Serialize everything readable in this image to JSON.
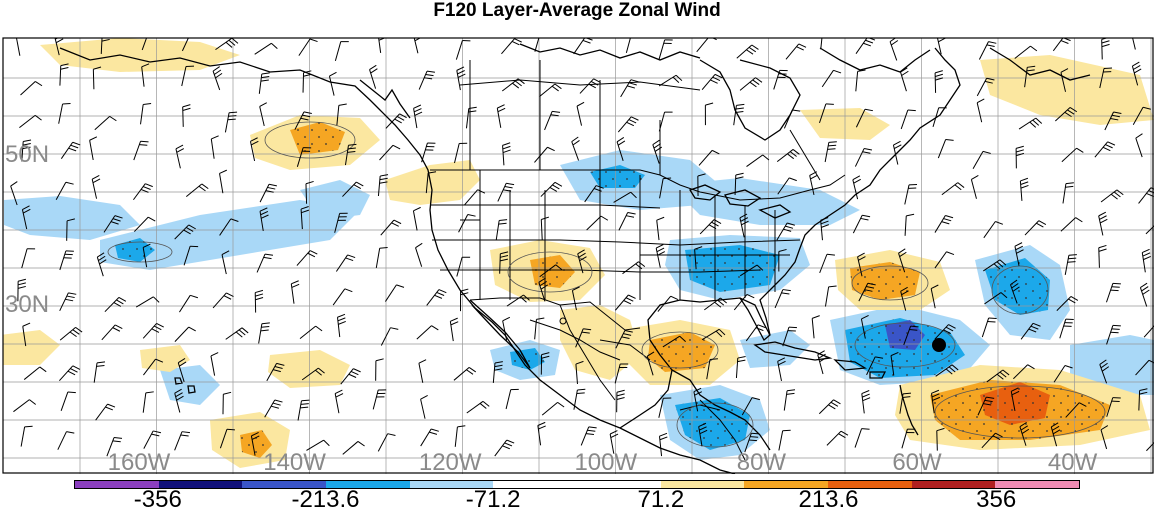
{
  "title": "F120 Layer-Average Zonal Wind",
  "lat_labels": [
    {
      "text": "50N",
      "lat": 50
    },
    {
      "text": "30N",
      "lat": 30
    }
  ],
  "lon_labels": [
    {
      "text": "160W",
      "lon": -160
    },
    {
      "text": "140W",
      "lon": -140
    },
    {
      "text": "120W",
      "lon": -120
    },
    {
      "text": "100W",
      "lon": -100
    },
    {
      "text": "80W",
      "lon": -80
    },
    {
      "text": "60W",
      "lon": -60
    },
    {
      "text": "40W",
      "lon": -40
    }
  ],
  "colorbar": {
    "colors": [
      "#8b3fbf",
      "#10107a",
      "#3a55c8",
      "#1ca8ea",
      "#a9d8f7",
      "#ffffff",
      "#ffffff",
      "#fbe7a0",
      "#f5a623",
      "#e8600f",
      "#b02020",
      "#f08cb4"
    ],
    "labels": [
      {
        "text": "-356",
        "boundary": 1
      },
      {
        "text": "-213.6",
        "boundary": 3
      },
      {
        "text": "-71.2",
        "boundary": 5
      },
      {
        "text": "71.2",
        "boundary": 7
      },
      {
        "text": "213.6",
        "boundary": 9
      },
      {
        "text": "356",
        "boundary": 11
      }
    ]
  },
  "fill_colors": {
    "light_blue": "#a9d8f7",
    "blue": "#1ca8ea",
    "dark_blue": "#3a55c8",
    "light_yellow": "#fbe7a0",
    "orange": "#f5a623",
    "dark_orange": "#e8600f"
  },
  "wind_regions": [
    {
      "name": "pacific-low-1",
      "type": "light_blue",
      "points": [
        [
          4,
          200
        ],
        [
          60,
          196
        ],
        [
          120,
          205
        ],
        [
          140,
          225
        ],
        [
          90,
          240
        ],
        [
          30,
          235
        ],
        [
          4,
          225
        ]
      ]
    },
    {
      "name": "pacific-low-2",
      "type": "light_blue",
      "points": [
        [
          100,
          240
        ],
        [
          200,
          215
        ],
        [
          300,
          200
        ],
        [
          360,
          210
        ],
        [
          330,
          240
        ],
        [
          240,
          255
        ],
        [
          150,
          270
        ],
        [
          100,
          262
        ]
      ]
    },
    {
      "name": "pacific-low-3",
      "type": "light_blue",
      "points": [
        [
          300,
          190
        ],
        [
          340,
          180
        ],
        [
          370,
          195
        ],
        [
          360,
          215
        ],
        [
          320,
          220
        ]
      ]
    },
    {
      "name": "canada-low",
      "type": "light_blue",
      "points": [
        [
          560,
          165
        ],
        [
          620,
          150
        ],
        [
          690,
          160
        ],
        [
          720,
          185
        ],
        [
          700,
          205
        ],
        [
          640,
          210
        ],
        [
          580,
          200
        ]
      ]
    },
    {
      "name": "great-lakes-low",
      "type": "light_blue",
      "points": [
        [
          670,
          185
        ],
        [
          740,
          178
        ],
        [
          820,
          190
        ],
        [
          860,
          210
        ],
        [
          830,
          225
        ],
        [
          760,
          225
        ],
        [
          700,
          215
        ]
      ]
    },
    {
      "name": "east-us-low",
      "type": "light_blue",
      "points": [
        [
          670,
          240
        ],
        [
          730,
          235
        ],
        [
          800,
          238
        ],
        [
          810,
          265
        ],
        [
          780,
          290
        ],
        [
          720,
          300
        ],
        [
          680,
          290
        ],
        [
          665,
          265
        ]
      ]
    },
    {
      "name": "mexico-low",
      "type": "light_blue",
      "points": [
        [
          490,
          350
        ],
        [
          530,
          340
        ],
        [
          560,
          350
        ],
        [
          555,
          375
        ],
        [
          520,
          380
        ],
        [
          495,
          370
        ]
      ]
    },
    {
      "name": "caribbean-low",
      "type": "light_blue",
      "points": [
        [
          740,
          340
        ],
        [
          790,
          330
        ],
        [
          810,
          345
        ],
        [
          790,
          365
        ],
        [
          750,
          368
        ]
      ]
    },
    {
      "name": "atlantic-low-1",
      "type": "light_blue",
      "points": [
        [
          830,
          320
        ],
        [
          900,
          305
        ],
        [
          960,
          320
        ],
        [
          990,
          345
        ],
        [
          960,
          380
        ],
        [
          880,
          385
        ],
        [
          840,
          370
        ]
      ]
    },
    {
      "name": "atlantic-low-2",
      "type": "light_blue",
      "points": [
        [
          975,
          260
        ],
        [
          1030,
          245
        ],
        [
          1060,
          265
        ],
        [
          1070,
          310
        ],
        [
          1050,
          340
        ],
        [
          1010,
          335
        ],
        [
          985,
          305
        ]
      ]
    },
    {
      "name": "atlantic-low-3",
      "type": "light_blue",
      "points": [
        [
          1070,
          345
        ],
        [
          1130,
          335
        ],
        [
          1154,
          340
        ],
        [
          1154,
          395
        ],
        [
          1100,
          395
        ],
        [
          1070,
          380
        ]
      ]
    },
    {
      "name": "central-america-low",
      "type": "light_blue",
      "points": [
        [
          660,
          395
        ],
        [
          720,
          385
        ],
        [
          760,
          400
        ],
        [
          770,
          430
        ],
        [
          740,
          455
        ],
        [
          700,
          460
        ],
        [
          670,
          440
        ]
      ]
    },
    {
      "name": "hawaii-low",
      "type": "light_blue",
      "points": [
        [
          160,
          370
        ],
        [
          200,
          365
        ],
        [
          220,
          385
        ],
        [
          200,
          405
        ],
        [
          170,
          400
        ]
      ]
    },
    {
      "name": "pacific-low-blue",
      "type": "blue",
      "points": [
        [
          115,
          245
        ],
        [
          140,
          238
        ],
        [
          155,
          250
        ],
        [
          140,
          262
        ],
        [
          118,
          258
        ]
      ]
    },
    {
      "name": "canada-low-blue",
      "type": "blue",
      "points": [
        [
          590,
          172
        ],
        [
          620,
          165
        ],
        [
          645,
          175
        ],
        [
          635,
          188
        ],
        [
          600,
          188
        ]
      ]
    },
    {
      "name": "east-us-low-blue",
      "type": "blue",
      "points": [
        [
          685,
          250
        ],
        [
          740,
          245
        ],
        [
          780,
          255
        ],
        [
          770,
          285
        ],
        [
          720,
          292
        ],
        [
          690,
          280
        ]
      ]
    },
    {
      "name": "atlantic-low-blue",
      "type": "blue",
      "points": [
        [
          845,
          330
        ],
        [
          900,
          318
        ],
        [
          950,
          332
        ],
        [
          965,
          355
        ],
        [
          935,
          375
        ],
        [
          880,
          378
        ],
        [
          850,
          362
        ]
      ]
    },
    {
      "name": "atlantic-low-blue-2",
      "type": "blue",
      "points": [
        [
          985,
          270
        ],
        [
          1025,
          258
        ],
        [
          1050,
          280
        ],
        [
          1048,
          310
        ],
        [
          1020,
          315
        ],
        [
          995,
          300
        ]
      ]
    },
    {
      "name": "central-america-blue",
      "type": "blue",
      "points": [
        [
          675,
          405
        ],
        [
          720,
          398
        ],
        [
          750,
          415
        ],
        [
          745,
          440
        ],
        [
          710,
          450
        ],
        [
          685,
          435
        ]
      ]
    },
    {
      "name": "mexico-blue",
      "type": "blue",
      "points": [
        [
          510,
          352
        ],
        [
          535,
          348
        ],
        [
          545,
          362
        ],
        [
          530,
          370
        ],
        [
          512,
          365
        ]
      ]
    },
    {
      "name": "atlantic-low-darkblue",
      "type": "dark_blue",
      "points": [
        [
          885,
          325
        ],
        [
          910,
          320
        ],
        [
          925,
          335
        ],
        [
          915,
          350
        ],
        [
          890,
          348
        ]
      ]
    },
    {
      "name": "alaska-high",
      "type": "light_yellow",
      "points": [
        [
          40,
          45
        ],
        [
          120,
          38
        ],
        [
          200,
          42
        ],
        [
          240,
          55
        ],
        [
          200,
          70
        ],
        [
          120,
          72
        ],
        [
          60,
          65
        ]
      ]
    },
    {
      "name": "gulf-alaska-high",
      "type": "light_yellow",
      "points": [
        [
          250,
          135
        ],
        [
          300,
          115
        ],
        [
          360,
          118
        ],
        [
          380,
          140
        ],
        [
          350,
          165
        ],
        [
          290,
          170
        ],
        [
          255,
          158
        ]
      ]
    },
    {
      "name": "pnw-high",
      "type": "light_yellow",
      "points": [
        [
          385,
          180
        ],
        [
          430,
          165
        ],
        [
          470,
          160
        ],
        [
          480,
          180
        ],
        [
          460,
          200
        ],
        [
          420,
          205
        ],
        [
          390,
          200
        ]
      ]
    },
    {
      "name": "southwest-high",
      "type": "light_yellow",
      "points": [
        [
          490,
          250
        ],
        [
          540,
          240
        ],
        [
          590,
          248
        ],
        [
          605,
          275
        ],
        [
          580,
          300
        ],
        [
          530,
          302
        ],
        [
          495,
          285
        ]
      ]
    },
    {
      "name": "mexico-high",
      "type": "light_yellow",
      "points": [
        [
          560,
          310
        ],
        [
          600,
          305
        ],
        [
          630,
          320
        ],
        [
          640,
          355
        ],
        [
          610,
          380
        ],
        [
          575,
          370
        ],
        [
          560,
          340
        ]
      ]
    },
    {
      "name": "gulf-high",
      "type": "light_yellow",
      "points": [
        [
          620,
          330
        ],
        [
          680,
          320
        ],
        [
          730,
          330
        ],
        [
          740,
          360
        ],
        [
          710,
          385
        ],
        [
          650,
          385
        ],
        [
          625,
          360
        ]
      ]
    },
    {
      "name": "atlantic-high-1",
      "type": "light_yellow",
      "points": [
        [
          835,
          260
        ],
        [
          890,
          250
        ],
        [
          940,
          262
        ],
        [
          950,
          290
        ],
        [
          920,
          310
        ],
        [
          860,
          310
        ],
        [
          838,
          290
        ]
      ]
    },
    {
      "name": "atlantic-high-2",
      "type": "light_yellow",
      "points": [
        [
          900,
          385
        ],
        [
          980,
          365
        ],
        [
          1060,
          370
        ],
        [
          1140,
          395
        ],
        [
          1150,
          430
        ],
        [
          1080,
          445
        ],
        [
          980,
          450
        ],
        [
          910,
          440
        ],
        [
          895,
          415
        ]
      ]
    },
    {
      "name": "north-atlantic-high",
      "type": "light_yellow",
      "points": [
        [
          980,
          60
        ],
        [
          1050,
          55
        ],
        [
          1140,
          75
        ],
        [
          1154,
          120
        ],
        [
          1100,
          125
        ],
        [
          1040,
          115
        ],
        [
          990,
          95
        ]
      ]
    },
    {
      "name": "labrador-high",
      "type": "light_yellow",
      "points": [
        [
          800,
          110
        ],
        [
          860,
          108
        ],
        [
          890,
          125
        ],
        [
          870,
          140
        ],
        [
          820,
          138
        ]
      ]
    },
    {
      "name": "east-pacific-high",
      "type": "light_yellow",
      "points": [
        [
          270,
          355
        ],
        [
          320,
          350
        ],
        [
          350,
          365
        ],
        [
          340,
          385
        ],
        [
          290,
          388
        ],
        [
          268,
          372
        ]
      ]
    },
    {
      "name": "south-pacific-high",
      "type": "light_yellow",
      "points": [
        [
          210,
          420
        ],
        [
          260,
          412
        ],
        [
          290,
          430
        ],
        [
          285,
          460
        ],
        [
          240,
          468
        ],
        [
          212,
          450
        ]
      ]
    },
    {
      "name": "west-pacific-high",
      "type": "light_yellow",
      "points": [
        [
          0,
          335
        ],
        [
          40,
          330
        ],
        [
          60,
          345
        ],
        [
          40,
          365
        ],
        [
          0,
          365
        ]
      ]
    },
    {
      "name": "hawaii-high",
      "type": "light_yellow",
      "points": [
        [
          140,
          350
        ],
        [
          180,
          345
        ],
        [
          190,
          360
        ],
        [
          170,
          372
        ],
        [
          142,
          368
        ]
      ]
    },
    {
      "name": "gulf-alaska-orange",
      "type": "orange",
      "points": [
        [
          290,
          130
        ],
        [
          320,
          122
        ],
        [
          345,
          132
        ],
        [
          338,
          150
        ],
        [
          300,
          155
        ]
      ]
    },
    {
      "name": "southwest-orange",
      "type": "orange",
      "points": [
        [
          530,
          260
        ],
        [
          560,
          255
        ],
        [
          575,
          272
        ],
        [
          560,
          288
        ],
        [
          535,
          285
        ]
      ]
    },
    {
      "name": "gulf-orange",
      "type": "orange",
      "points": [
        [
          650,
          340
        ],
        [
          690,
          332
        ],
        [
          715,
          345
        ],
        [
          705,
          368
        ],
        [
          665,
          372
        ],
        [
          648,
          358
        ]
      ]
    },
    {
      "name": "atlantic-orange-1",
      "type": "orange",
      "points": [
        [
          850,
          268
        ],
        [
          890,
          262
        ],
        [
          920,
          272
        ],
        [
          915,
          295
        ],
        [
          880,
          300
        ],
        [
          852,
          290
        ]
      ]
    },
    {
      "name": "atlantic-orange-2",
      "type": "orange",
      "points": [
        [
          930,
          395
        ],
        [
          990,
          380
        ],
        [
          1060,
          385
        ],
        [
          1110,
          405
        ],
        [
          1100,
          430
        ],
        [
          1030,
          440
        ],
        [
          960,
          440
        ],
        [
          935,
          420
        ]
      ]
    },
    {
      "name": "south-pacific-orange",
      "type": "orange",
      "points": [
        [
          240,
          435
        ],
        [
          262,
          430
        ],
        [
          272,
          445
        ],
        [
          260,
          458
        ],
        [
          242,
          452
        ]
      ]
    },
    {
      "name": "atlantic-darkorange",
      "type": "dark_orange",
      "points": [
        [
          980,
          395
        ],
        [
          1020,
          382
        ],
        [
          1050,
          395
        ],
        [
          1045,
          418
        ],
        [
          1010,
          425
        ],
        [
          985,
          415
        ]
      ]
    }
  ]
}
